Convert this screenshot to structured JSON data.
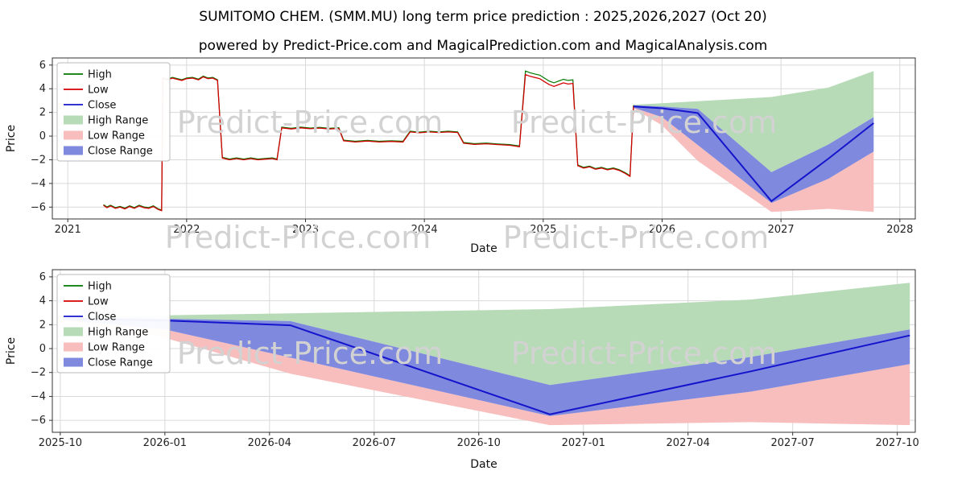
{
  "title": "SUMITOMO CHEM. (SMM.MU) long term price prediction : 2025,2026,2027 (Oct 20)",
  "subtitle": "powered by Predict-Price.com and MagicalPrediction.com and MagicalAnalysis.com",
  "watermark": "Predict-Price.com",
  "colors": {
    "high": "#007a00",
    "low": "#d40000",
    "close": "#1414cc",
    "high_range": "#b7dbb7",
    "low_range": "#f8bdbd",
    "close_range": "#7f89dd",
    "grid": "#d9d9d9",
    "spine": "#333333",
    "tick": "#222222",
    "legend_border": "#b9b9b9"
  },
  "legend": [
    {
      "label": "High",
      "swatch": "line",
      "color_key": "high"
    },
    {
      "label": "Low",
      "swatch": "line",
      "color_key": "low"
    },
    {
      "label": "Close",
      "swatch": "line",
      "color_key": "close"
    },
    {
      "label": "High Range",
      "swatch": "patch",
      "color_key": "high_range"
    },
    {
      "label": "Low Range",
      "swatch": "patch",
      "color_key": "low_range"
    },
    {
      "label": "Close Range",
      "swatch": "patch",
      "color_key": "close_range"
    }
  ],
  "chart_data": [
    {
      "type": "line",
      "xlabel": "Date",
      "ylabel": "Price",
      "x_domain": [
        2020.87,
        2028.13
      ],
      "y_domain": [
        -7.0,
        6.6
      ],
      "x_ticks": {
        "values": [
          2021,
          2022,
          2023,
          2024,
          2025,
          2026,
          2027,
          2028
        ],
        "labels": [
          "2021",
          "2022",
          "2023",
          "2024",
          "2025",
          "2026",
          "2027",
          "2028"
        ]
      },
      "y_ticks": {
        "values": [
          -6,
          -4,
          -2,
          0,
          2,
          4,
          6
        ],
        "labels": [
          "−6",
          "−4",
          "−2",
          "0",
          "2",
          "4",
          "6"
        ]
      },
      "high_offset": 0.06,
      "high_spike": {
        "from": 2024.84,
        "to": 2025.27,
        "offset": 0.3
      },
      "history_low": [
        [
          2021.3,
          -5.85
        ],
        [
          2021.33,
          -6.05
        ],
        [
          2021.36,
          -5.9
        ],
        [
          2021.4,
          -6.1
        ],
        [
          2021.44,
          -6.0
        ],
        [
          2021.48,
          -6.15
        ],
        [
          2021.52,
          -5.95
        ],
        [
          2021.56,
          -6.1
        ],
        [
          2021.6,
          -5.9
        ],
        [
          2021.64,
          -6.05
        ],
        [
          2021.68,
          -6.1
        ],
        [
          2021.72,
          -5.95
        ],
        [
          2021.76,
          -6.2
        ],
        [
          2021.79,
          -6.3
        ],
        [
          2021.8,
          4.85
        ],
        [
          2021.84,
          4.75
        ],
        [
          2021.88,
          4.9
        ],
        [
          2021.92,
          4.8
        ],
        [
          2021.96,
          4.7
        ],
        [
          2022.0,
          4.85
        ],
        [
          2022.05,
          4.9
        ],
        [
          2022.1,
          4.75
        ],
        [
          2022.14,
          5.0
        ],
        [
          2022.18,
          4.85
        ],
        [
          2022.22,
          4.9
        ],
        [
          2022.26,
          4.7
        ],
        [
          2022.3,
          -1.85
        ],
        [
          2022.36,
          -2.0
        ],
        [
          2022.42,
          -1.9
        ],
        [
          2022.48,
          -2.0
        ],
        [
          2022.54,
          -1.9
        ],
        [
          2022.6,
          -2.0
        ],
        [
          2022.66,
          -1.95
        ],
        [
          2022.72,
          -1.9
        ],
        [
          2022.76,
          -2.0
        ],
        [
          2022.8,
          0.7
        ],
        [
          2022.88,
          0.6
        ],
        [
          2022.96,
          0.7
        ],
        [
          2023.04,
          0.62
        ],
        [
          2023.12,
          0.68
        ],
        [
          2023.2,
          0.6
        ],
        [
          2023.28,
          0.65
        ],
        [
          2023.32,
          -0.4
        ],
        [
          2023.42,
          -0.5
        ],
        [
          2023.52,
          -0.42
        ],
        [
          2023.62,
          -0.5
        ],
        [
          2023.72,
          -0.45
        ],
        [
          2023.82,
          -0.5
        ],
        [
          2023.88,
          0.35
        ],
        [
          2023.96,
          0.28
        ],
        [
          2024.04,
          0.35
        ],
        [
          2024.12,
          0.3
        ],
        [
          2024.2,
          0.35
        ],
        [
          2024.28,
          0.3
        ],
        [
          2024.33,
          -0.6
        ],
        [
          2024.42,
          -0.7
        ],
        [
          2024.52,
          -0.65
        ],
        [
          2024.62,
          -0.72
        ],
        [
          2024.72,
          -0.78
        ],
        [
          2024.8,
          -0.9
        ],
        [
          2024.85,
          5.2
        ],
        [
          2024.89,
          5.05
        ],
        [
          2024.93,
          4.95
        ],
        [
          2024.97,
          4.85
        ],
        [
          2025.01,
          4.6
        ],
        [
          2025.05,
          4.35
        ],
        [
          2025.09,
          4.2
        ],
        [
          2025.13,
          4.35
        ],
        [
          2025.17,
          4.5
        ],
        [
          2025.21,
          4.4
        ],
        [
          2025.25,
          4.45
        ],
        [
          2025.29,
          -2.5
        ],
        [
          2025.34,
          -2.7
        ],
        [
          2025.39,
          -2.6
        ],
        [
          2025.44,
          -2.8
        ],
        [
          2025.49,
          -2.7
        ],
        [
          2025.54,
          -2.85
        ],
        [
          2025.59,
          -2.75
        ],
        [
          2025.64,
          -2.9
        ],
        [
          2025.69,
          -3.15
        ],
        [
          2025.73,
          -3.4
        ],
        [
          2025.76,
          2.55
        ]
      ],
      "prediction": {
        "x": [
          2025.76,
          2026.0,
          2026.3,
          2026.92,
          2027.4,
          2027.78
        ],
        "close": [
          2.5,
          2.35,
          1.95,
          -5.5,
          -1.9,
          1.1
        ],
        "close_upper": [
          2.6,
          2.5,
          2.3,
          -3.05,
          -0.7,
          1.6
        ],
        "close_lower": [
          2.4,
          1.6,
          -0.75,
          -5.65,
          -3.6,
          -1.3
        ],
        "high_upper": [
          2.65,
          2.78,
          2.95,
          3.3,
          4.1,
          5.5
        ],
        "low_lower": [
          2.35,
          0.9,
          -2.1,
          -6.4,
          -6.15,
          -6.4
        ]
      }
    },
    {
      "type": "line",
      "xlabel": "Date",
      "ylabel": "Price",
      "x_domain": [
        2025.731,
        2027.793
      ],
      "y_domain": [
        -7.0,
        6.6
      ],
      "x_ticks": {
        "values": [
          2025.75,
          2026.0,
          2026.25,
          2026.5,
          2026.75,
          2027.0,
          2027.25,
          2027.5,
          2027.75
        ],
        "labels": [
          "2025-10",
          "2026-01",
          "2026-04",
          "2026-07",
          "2026-10",
          "2027-01",
          "2027-04",
          "2027-07",
          "2027-10"
        ]
      },
      "y_ticks": {
        "values": [
          -6,
          -4,
          -2,
          0,
          2,
          4,
          6
        ],
        "labels": [
          "−6",
          "−4",
          "−2",
          "0",
          "2",
          "4",
          "6"
        ]
      },
      "prediction": {
        "x": [
          2025.76,
          2026.0,
          2026.3,
          2026.92,
          2027.4,
          2027.78
        ],
        "close": [
          2.5,
          2.35,
          1.95,
          -5.5,
          -1.9,
          1.1
        ],
        "close_upper": [
          2.6,
          2.5,
          2.3,
          -3.05,
          -0.7,
          1.6
        ],
        "close_lower": [
          2.4,
          1.6,
          -0.75,
          -5.65,
          -3.6,
          -1.3
        ],
        "high_upper": [
          2.65,
          2.78,
          2.95,
          3.3,
          4.1,
          5.5
        ],
        "low_lower": [
          2.35,
          0.9,
          -2.1,
          -6.4,
          -6.15,
          -6.4
        ]
      }
    }
  ]
}
